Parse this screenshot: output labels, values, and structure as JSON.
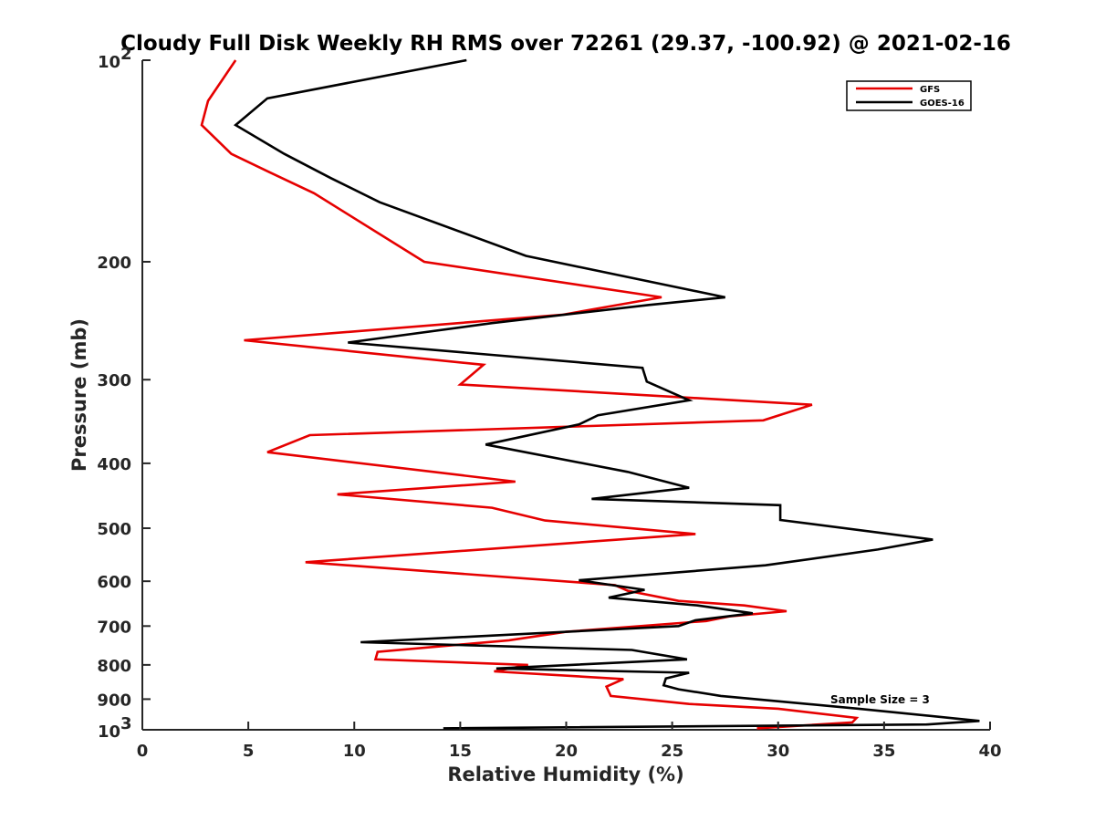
{
  "chart_data": {
    "type": "line",
    "title": "Cloudy Full Disk Weekly RH RMS over 72261 (29.37, -100.92) @ 2021-02-16",
    "xlabel": "Relative Humidity (%)",
    "ylabel": "Pressure (mb)",
    "xlim": [
      0,
      40
    ],
    "ylim": [
      100,
      1000
    ],
    "y_scale": "log",
    "y_reversed": true,
    "grid": false,
    "legend_position": "top-right",
    "annotation": "Sample Size = 3",
    "x_ticks": [
      {
        "value": 0,
        "label": "0"
      },
      {
        "value": 5,
        "label": "5"
      },
      {
        "value": 10,
        "label": "10"
      },
      {
        "value": 15,
        "label": "15"
      },
      {
        "value": 20,
        "label": "20"
      },
      {
        "value": 25,
        "label": "25"
      },
      {
        "value": 30,
        "label": "30"
      },
      {
        "value": 35,
        "label": "35"
      },
      {
        "value": 40,
        "label": "40"
      }
    ],
    "y_ticks": [
      {
        "value": 100,
        "base": "10",
        "exp": "2"
      },
      {
        "value": 200,
        "label": "200"
      },
      {
        "value": 300,
        "label": "300"
      },
      {
        "value": 400,
        "label": "400"
      },
      {
        "value": 500,
        "label": "500"
      },
      {
        "value": 600,
        "label": "600"
      },
      {
        "value": 700,
        "label": "700"
      },
      {
        "value": 800,
        "label": "800"
      },
      {
        "value": 900,
        "label": "900"
      },
      {
        "value": 1000,
        "base": "10",
        "exp": "3"
      }
    ],
    "series": [
      {
        "name": "GFS",
        "color": "#e60000",
        "points": [
          [
            4.4,
            100
          ],
          [
            3.1,
            115
          ],
          [
            2.8,
            125
          ],
          [
            4.2,
            138
          ],
          [
            6.0,
            147
          ],
          [
            8.1,
            158
          ],
          [
            13.3,
            200
          ],
          [
            24.5,
            226
          ],
          [
            19.8,
            240
          ],
          [
            4.8,
            262
          ],
          [
            16.1,
            285
          ],
          [
            15.0,
            305
          ],
          [
            31.6,
            327
          ],
          [
            29.3,
            345
          ],
          [
            7.9,
            363
          ],
          [
            5.9,
            385
          ],
          [
            17.6,
            426
          ],
          [
            9.2,
            445
          ],
          [
            16.5,
            466
          ],
          [
            19.0,
            487
          ],
          [
            26.1,
            510
          ],
          [
            7.7,
            562
          ],
          [
            22.3,
            608
          ],
          [
            22.9,
            620
          ],
          [
            25.3,
            642
          ],
          [
            28.4,
            652
          ],
          [
            30.4,
            665
          ],
          [
            27.7,
            677
          ],
          [
            26.6,
            688
          ],
          [
            20.0,
            714
          ],
          [
            17.3,
            735
          ],
          [
            11.1,
            765
          ],
          [
            11.0,
            785
          ],
          [
            18.2,
            800
          ],
          [
            16.6,
            818
          ],
          [
            22.7,
            840
          ],
          [
            21.9,
            862
          ],
          [
            22.1,
            890
          ],
          [
            25.8,
            915
          ],
          [
            30.0,
            930
          ],
          [
            33.7,
            960
          ],
          [
            33.5,
            975
          ],
          [
            29.0,
            995
          ]
        ]
      },
      {
        "name": "GOES-16",
        "color": "#000000",
        "points": [
          [
            15.3,
            100
          ],
          [
            5.9,
            114
          ],
          [
            4.4,
            125
          ],
          [
            6.7,
            138
          ],
          [
            8.9,
            150
          ],
          [
            11.2,
            163
          ],
          [
            18.1,
            196
          ],
          [
            27.5,
            226
          ],
          [
            23.9,
            232
          ],
          [
            16.5,
            247
          ],
          [
            9.7,
            264
          ],
          [
            23.6,
            288
          ],
          [
            23.8,
            302
          ],
          [
            25.8,
            322
          ],
          [
            21.5,
            339
          ],
          [
            20.6,
            350
          ],
          [
            16.2,
            375
          ],
          [
            22.9,
            412
          ],
          [
            25.8,
            435
          ],
          [
            21.2,
            452
          ],
          [
            30.1,
            462
          ],
          [
            30.1,
            486
          ],
          [
            37.3,
            520
          ],
          [
            34.7,
            538
          ],
          [
            29.4,
            568
          ],
          [
            20.6,
            598
          ],
          [
            23.7,
            618
          ],
          [
            22.0,
            635
          ],
          [
            26.2,
            652
          ],
          [
            28.8,
            670
          ],
          [
            26.1,
            686
          ],
          [
            25.3,
            700
          ],
          [
            10.3,
            740
          ],
          [
            23.1,
            760
          ],
          [
            25.7,
            785
          ],
          [
            16.7,
            810
          ],
          [
            25.8,
            822
          ],
          [
            24.7,
            838
          ],
          [
            24.6,
            858
          ],
          [
            25.3,
            870
          ],
          [
            27.3,
            890
          ],
          [
            33.8,
            930
          ],
          [
            39.5,
            970
          ],
          [
            37.0,
            982
          ],
          [
            14.2,
            995
          ]
        ]
      }
    ]
  }
}
